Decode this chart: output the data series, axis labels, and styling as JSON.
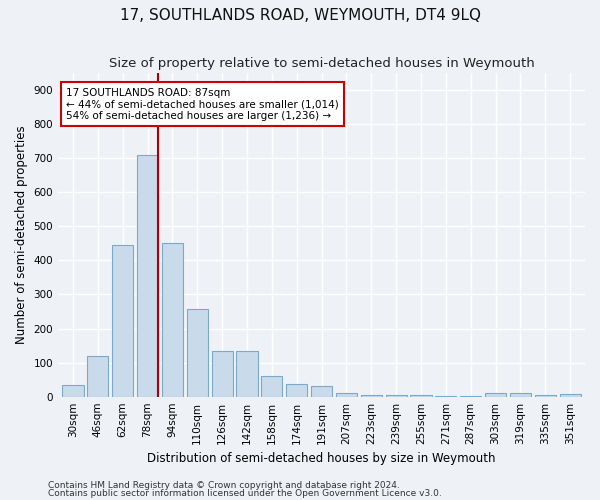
{
  "title": "17, SOUTHLANDS ROAD, WEYMOUTH, DT4 9LQ",
  "subtitle": "Size of property relative to semi-detached houses in Weymouth",
  "xlabel": "Distribution of semi-detached houses by size in Weymouth",
  "ylabel": "Number of semi-detached properties",
  "bar_color": "#c9daea",
  "bar_edgecolor": "#7aaac8",
  "bar_linewidth": 0.8,
  "vline_x": 4,
  "vline_color": "#aa0000",
  "categories": [
    "30sqm",
    "46sqm",
    "62sqm",
    "78sqm",
    "94sqm",
    "110sqm",
    "126sqm",
    "142sqm",
    "158sqm",
    "174sqm",
    "191sqm",
    "207sqm",
    "223sqm",
    "239sqm",
    "255sqm",
    "271sqm",
    "287sqm",
    "303sqm",
    "319sqm",
    "335sqm",
    "351sqm"
  ],
  "values": [
    35,
    120,
    445,
    710,
    450,
    258,
    135,
    135,
    60,
    38,
    30,
    12,
    5,
    5,
    5,
    3,
    3,
    10,
    10,
    5,
    8
  ],
  "ylim": [
    0,
    950
  ],
  "yticks": [
    0,
    100,
    200,
    300,
    400,
    500,
    600,
    700,
    800,
    900
  ],
  "annotation_text": "17 SOUTHLANDS ROAD: 87sqm\n← 44% of semi-detached houses are smaller (1,014)\n54% of semi-detached houses are larger (1,236) →",
  "annotation_box_edgecolor": "#cc0000",
  "annotation_box_facecolor": "#ffffff",
  "footer1": "Contains HM Land Registry data © Crown copyright and database right 2024.",
  "footer2": "Contains public sector information licensed under the Open Government Licence v3.0.",
  "background_color": "#eef2f7",
  "grid_color": "#ffffff",
  "title_fontsize": 11,
  "subtitle_fontsize": 9.5,
  "axis_label_fontsize": 8.5,
  "tick_fontsize": 7.5,
  "footer_fontsize": 6.5
}
